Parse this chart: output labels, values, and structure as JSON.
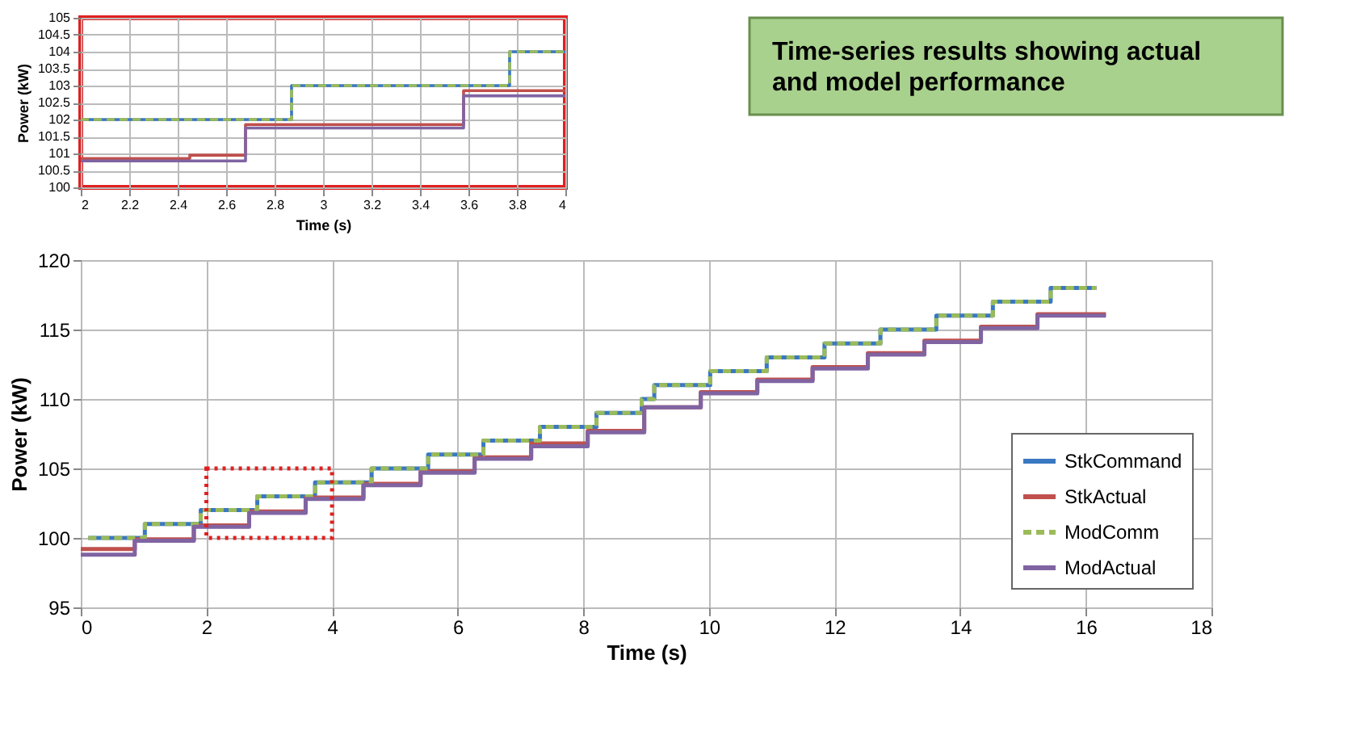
{
  "chart_data": [
    {
      "type": "step",
      "title": "Time-series results showing actual and model performance",
      "xlabel": "Time (s)",
      "ylabel": "Power (kW)",
      "xlim": [
        0,
        18
      ],
      "xticks": [
        0,
        2,
        4,
        6,
        8,
        10,
        12,
        14,
        16,
        18
      ],
      "ylim": [
        95,
        120
      ],
      "yticks": [
        95,
        100,
        105,
        110,
        115,
        120
      ],
      "grid": true,
      "legend": "bottom right",
      "series": [
        {
          "name": "StkCommand",
          "color": "#3a78c2",
          "line_style": "solid",
          "x": [
            0.12,
            1.02,
            1.91,
            2.81,
            3.73,
            4.63,
            5.53,
            6.41,
            7.31,
            8.21,
            8.93,
            9.13,
            10.02,
            10.92,
            11.84,
            12.73,
            13.62,
            14.52,
            15.44,
            16.17
          ],
          "values": [
            100,
            101,
            102,
            103,
            104,
            105,
            106,
            107,
            108,
            109,
            110,
            111,
            112,
            113,
            114,
            115,
            116,
            117,
            118,
            118
          ]
        },
        {
          "name": "StkActual",
          "color": "#c0504d",
          "line_style": "solid",
          "x": [
            0,
            0.86,
            1.8,
            2.68,
            3.58,
            4.5,
            5.41,
            6.27,
            7.17,
            8.07,
            8.97,
            9.87,
            10.77,
            11.65,
            12.53,
            13.43,
            14.33,
            15.23,
            16.32
          ],
          "values": [
            99.2,
            99.9,
            100.9,
            101.9,
            102.9,
            103.9,
            104.8,
            105.8,
            106.8,
            107.7,
            109.4,
            110.5,
            111.4,
            112.3,
            113.3,
            114.2,
            115.2,
            116.1,
            116.1
          ]
        },
        {
          "name": "ModComm",
          "color": "#9bbb59",
          "line_style": "dashed",
          "x": [
            0.12,
            1.02,
            1.91,
            2.81,
            3.73,
            4.63,
            5.53,
            6.41,
            7.31,
            8.21,
            8.93,
            9.13,
            10.02,
            10.92,
            11.84,
            12.73,
            13.62,
            14.52,
            15.44,
            16.17
          ],
          "values": [
            100,
            101,
            102,
            103,
            104,
            105,
            106,
            107,
            108,
            109,
            110,
            111,
            112,
            113,
            114,
            115,
            116,
            117,
            118,
            118
          ]
        },
        {
          "name": "ModActual",
          "color": "#8064a2",
          "line_style": "solid",
          "x": [
            0,
            0.86,
            1.8,
            2.68,
            3.58,
            4.5,
            5.41,
            6.27,
            7.17,
            8.07,
            8.97,
            9.87,
            10.77,
            11.65,
            12.53,
            13.43,
            14.33,
            15.23,
            16.32
          ],
          "values": [
            98.8,
            99.8,
            100.8,
            101.8,
            102.8,
            103.8,
            104.7,
            105.7,
            106.6,
            107.6,
            109.4,
            110.4,
            111.3,
            112.2,
            113.2,
            114.1,
            115.1,
            116,
            116
          ]
        }
      ]
    },
    {
      "type": "step",
      "xlabel": "Time (s)",
      "ylabel": "Power (kW)",
      "xlim": [
        2,
        4
      ],
      "xticks": [
        2,
        2.2,
        2.4,
        2.6,
        2.8,
        3,
        3.2,
        3.4,
        3.6,
        3.8,
        4
      ],
      "ylim": [
        100,
        105
      ],
      "yticks": [
        100,
        100.5,
        101,
        101.5,
        102,
        102.5,
        103,
        103.5,
        104,
        104.5,
        105
      ],
      "grid": true,
      "series": [
        {
          "color": "#3a78c2",
          "line_style": "solid",
          "x": [
            2,
            2.87,
            3.77,
            4
          ],
          "values": [
            102,
            103,
            104,
            104
          ]
        },
        {
          "color": "#c0504d",
          "line_style": "solid",
          "x": [
            2,
            2.45,
            2.68,
            3.58,
            4
          ],
          "values": [
            100.85,
            100.95,
            101.85,
            102.85,
            102.85
          ]
        },
        {
          "color": "#9bbb59",
          "line_style": "dashed",
          "x": [
            2,
            2.87,
            3.77,
            4
          ],
          "values": [
            102,
            103,
            104,
            104
          ]
        },
        {
          "color": "#8064a2",
          "line_style": "solid",
          "x": [
            2,
            2.68,
            3.58,
            4
          ],
          "values": [
            100.78,
            101.75,
            102.7,
            102.7
          ]
        }
      ]
    }
  ]
}
